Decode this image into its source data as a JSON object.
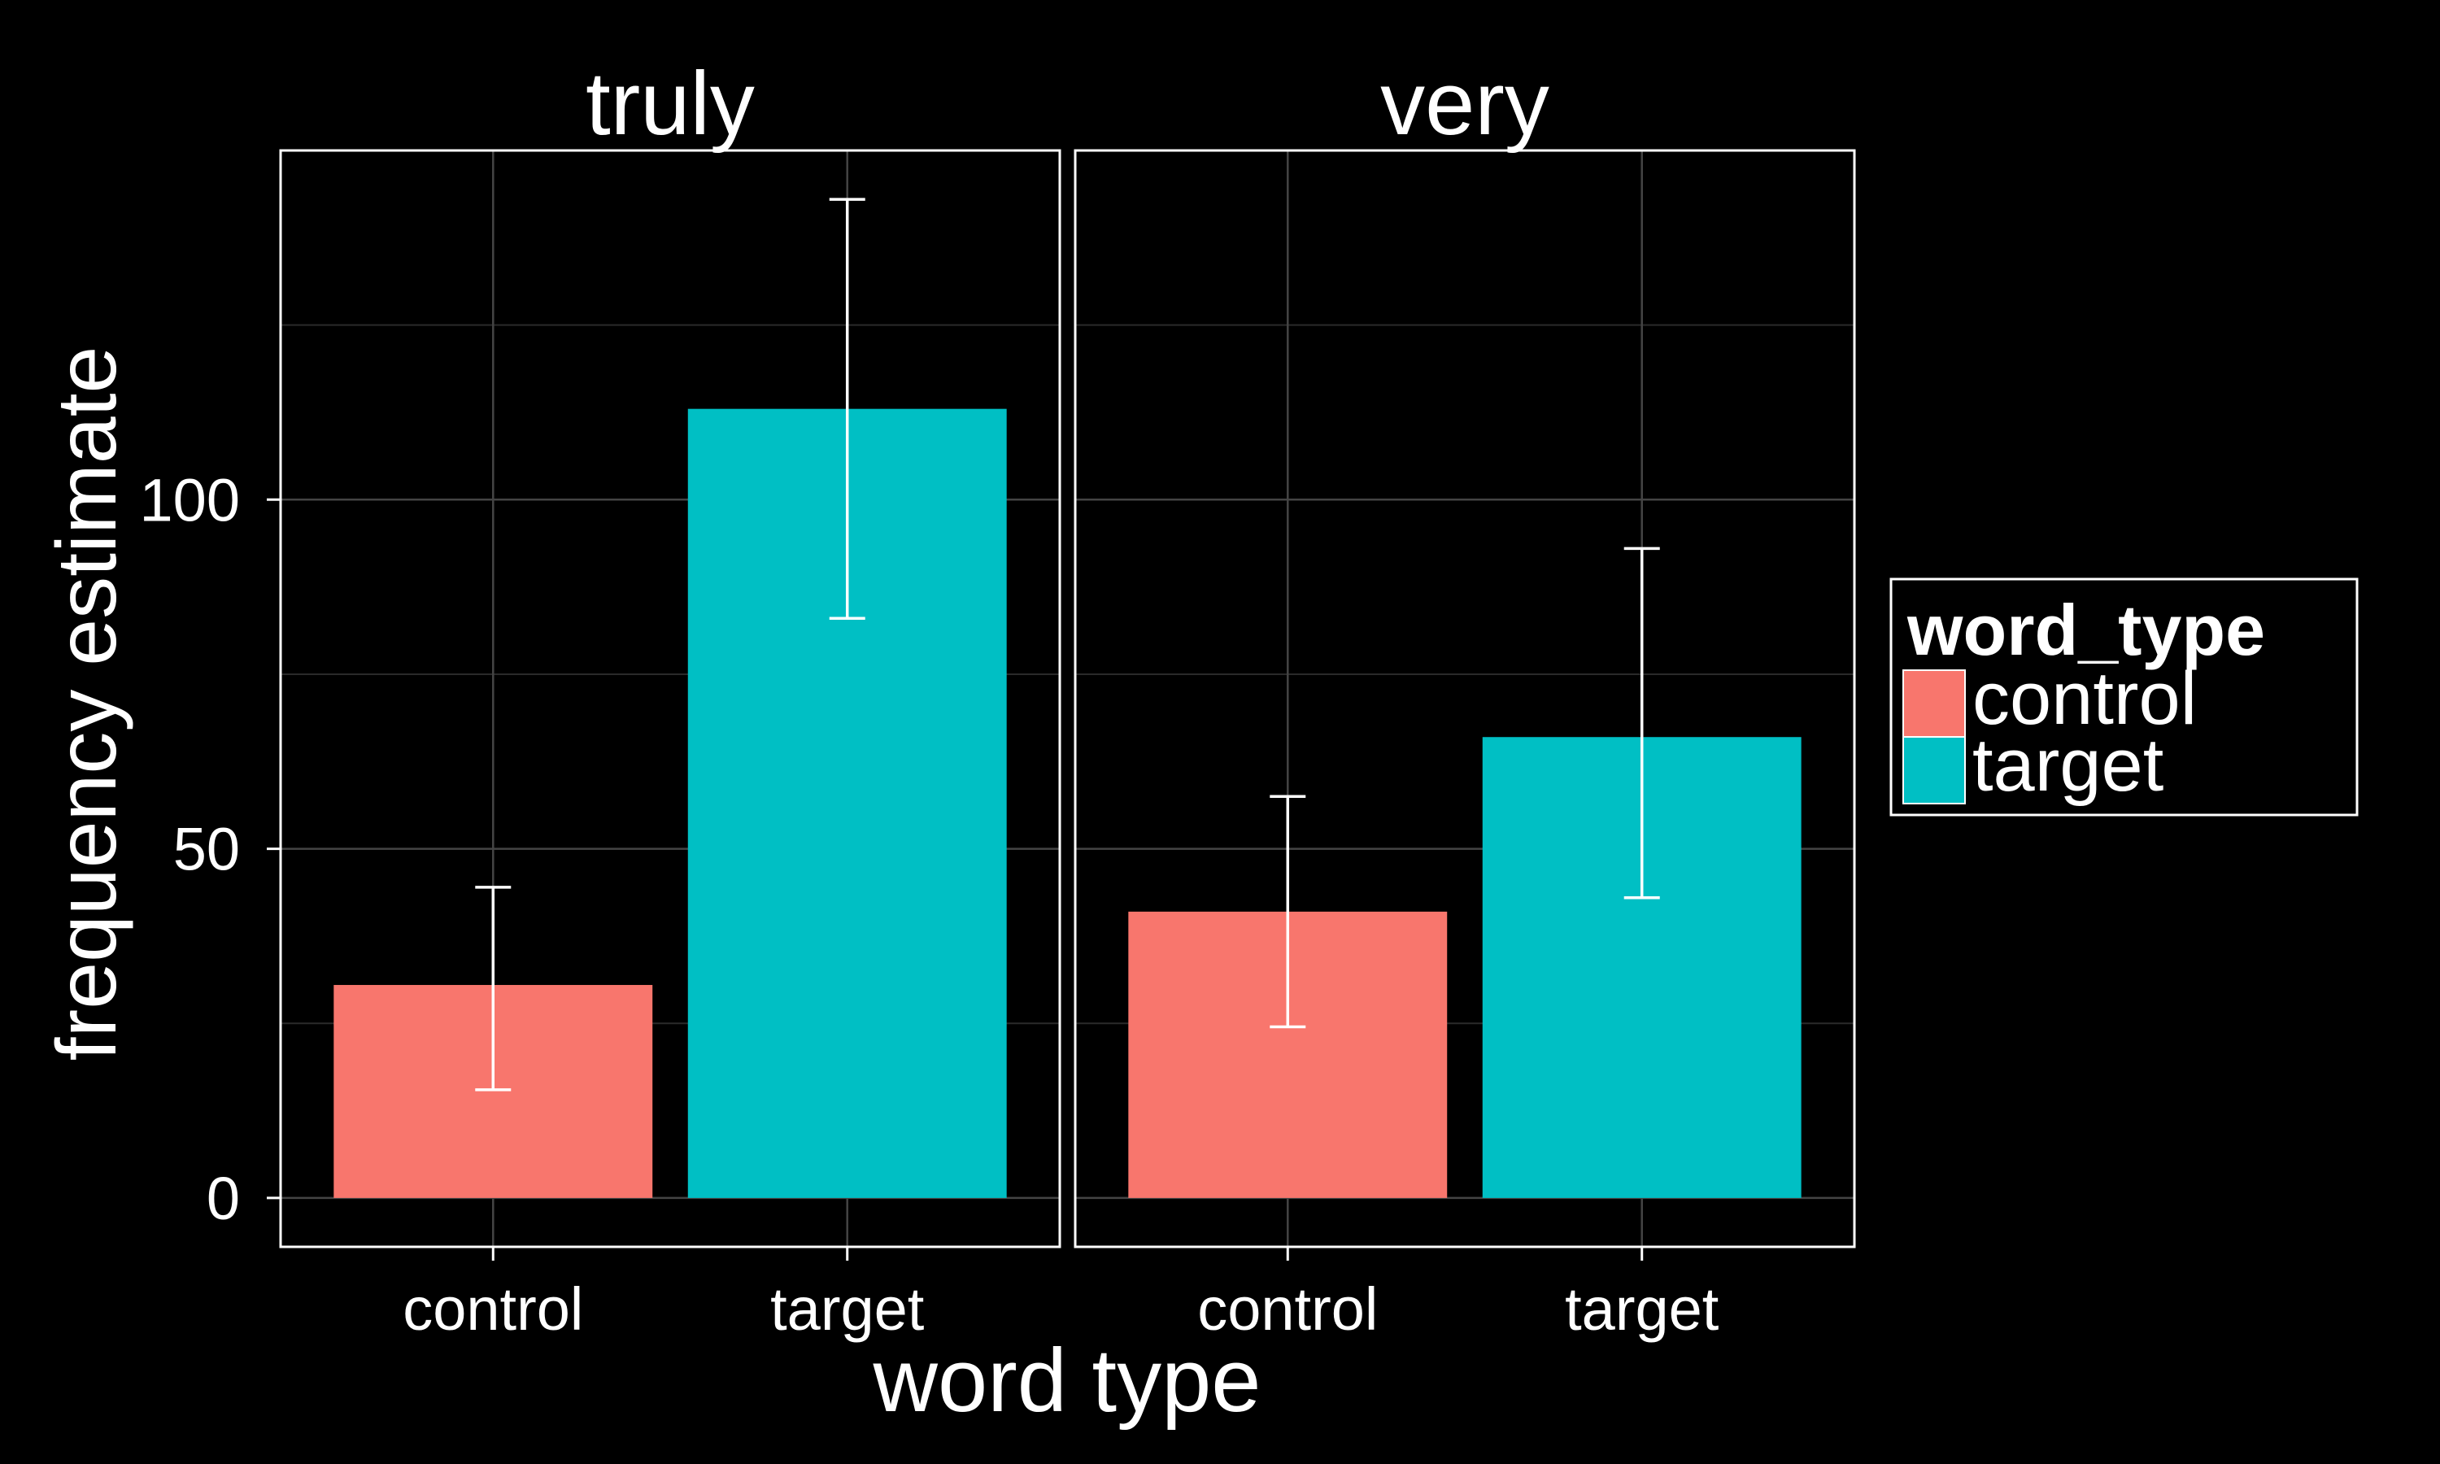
{
  "chart_data": {
    "type": "bar",
    "facets": [
      {
        "label": "truly",
        "categories": [
          "control",
          "target"
        ],
        "values": [
          30.5,
          113
        ],
        "error_low": [
          15.5,
          83
        ],
        "error_high": [
          44.5,
          143
        ]
      },
      {
        "label": "very",
        "categories": [
          "control",
          "target"
        ],
        "values": [
          41,
          66
        ],
        "error_low": [
          24.5,
          43
        ],
        "error_high": [
          57.5,
          93
        ]
      }
    ],
    "xlabel": "word type",
    "ylabel": "frequency estimate",
    "ylim": [
      -7,
      150
    ],
    "yticks": [
      0,
      50,
      100
    ],
    "legend": {
      "title": "word_type",
      "entries": [
        {
          "label": "control",
          "color": "#F8766D"
        },
        {
          "label": "target",
          "color": "#00BFC4"
        }
      ],
      "position": "right"
    },
    "colors": {
      "control": "#F8766D",
      "target": "#00BFC4",
      "background": "#000000",
      "foreground": "#FFFFFF"
    },
    "grid": true
  }
}
